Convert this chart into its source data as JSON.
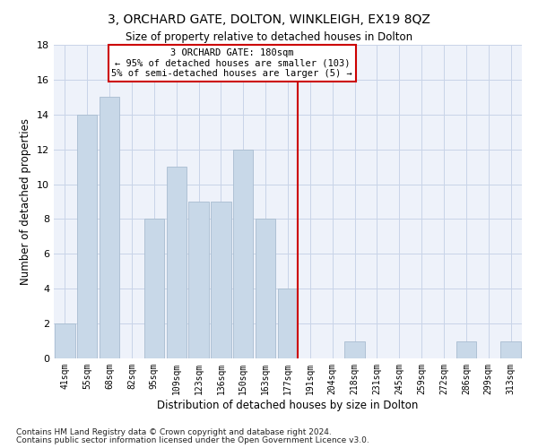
{
  "title": "3, ORCHARD GATE, DOLTON, WINKLEIGH, EX19 8QZ",
  "subtitle": "Size of property relative to detached houses in Dolton",
  "xlabel": "Distribution of detached houses by size in Dolton",
  "ylabel": "Number of detached properties",
  "categories": [
    "41sqm",
    "55sqm",
    "68sqm",
    "82sqm",
    "95sqm",
    "109sqm",
    "123sqm",
    "136sqm",
    "150sqm",
    "163sqm",
    "177sqm",
    "191sqm",
    "204sqm",
    "218sqm",
    "231sqm",
    "245sqm",
    "259sqm",
    "272sqm",
    "286sqm",
    "299sqm",
    "313sqm"
  ],
  "values": [
    2,
    14,
    15,
    0,
    8,
    11,
    9,
    9,
    12,
    8,
    4,
    0,
    0,
    1,
    0,
    0,
    0,
    0,
    1,
    0,
    1
  ],
  "bar_color": "#c8d8e8",
  "bar_edge_color": "#a8bcd0",
  "vline_x_index": 10,
  "vline_color": "#cc0000",
  "ylim": [
    0,
    18
  ],
  "yticks": [
    0,
    2,
    4,
    6,
    8,
    10,
    12,
    14,
    16,
    18
  ],
  "annotation_title": "3 ORCHARD GATE: 180sqm",
  "annotation_line1": "← 95% of detached houses are smaller (103)",
  "annotation_line2": "5% of semi-detached houses are larger (5) →",
  "annotation_box_color": "#cc0000",
  "grid_color": "#c8d4e8",
  "background_color": "#eef2fa",
  "footnote1": "Contains HM Land Registry data © Crown copyright and database right 2024.",
  "footnote2": "Contains public sector information licensed under the Open Government Licence v3.0."
}
